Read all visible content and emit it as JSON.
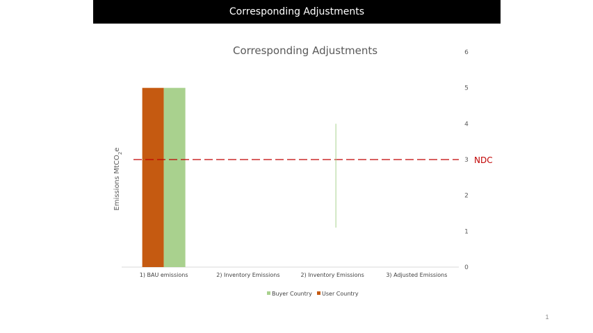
{
  "slide": {
    "title": "Corresponding Adjustments",
    "page_number": "1"
  },
  "chart_data": {
    "type": "bar",
    "title": "Corresponding Adjustments",
    "xlabel": "",
    "ylabel": "Emissions MtCO2e",
    "ylim": [
      0,
      6
    ],
    "yticks": [
      "0",
      "1",
      "2",
      "3",
      "4",
      "5",
      "6"
    ],
    "y_axis_side": "right",
    "grid": false,
    "legend_position": "bottom",
    "categories": [
      "1) BAU emissions",
      "2) Inventory Emissions",
      "2) Inventory Emissions",
      "3) Adjusted Emissions"
    ],
    "series": [
      {
        "name": "User Country",
        "color": "#c55a11",
        "values": [
          5,
          null,
          null,
          null
        ]
      },
      {
        "name": "Buyer Country",
        "color": "#a9d18e",
        "values": [
          5,
          null,
          null,
          null
        ]
      }
    ],
    "annotations": [
      {
        "type": "reference-line",
        "label": "NDC",
        "y": 3,
        "color": "#c00000",
        "style": "dashed"
      },
      {
        "type": "range-line",
        "category_index": 2,
        "y_from": 1.1,
        "y_to": 4.0,
        "color": "#a9d18e"
      }
    ]
  }
}
